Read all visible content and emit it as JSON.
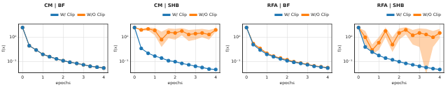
{
  "chart_data": [
    {
      "type": "line",
      "title": "CM | BF",
      "x_label": "epochs",
      "y_label": "f(x)",
      "x": [
        0,
        0.33,
        0.67,
        1,
        1.33,
        1.67,
        2,
        2.33,
        2.67,
        3,
        3.33,
        3.67,
        4
      ],
      "series": [
        {
          "name": "W/ Clip",
          "color": "#1f77b4",
          "marker": "circle",
          "line_style": "solid",
          "values": [
            2.5,
            0.45,
            0.3,
            0.2,
            0.16,
            0.13,
            0.11,
            0.095,
            0.085,
            0.075,
            0.065,
            0.06,
            0.055
          ]
        },
        {
          "name": "W/O Clip",
          "color": "#ff7f0e",
          "marker": "circle",
          "line_style": "solid",
          "values": [
            2.5,
            0.45,
            0.3,
            0.2,
            0.16,
            0.13,
            0.11,
            0.095,
            0.085,
            0.075,
            0.065,
            0.06,
            0.055
          ]
        }
      ],
      "log": "y",
      "grid": true,
      "legend": "upper right",
      "xlim": [
        -0.2,
        4.2
      ],
      "xticks": [
        0,
        1,
        2,
        3,
        4
      ],
      "ylim": [
        0.035,
        3.5
      ],
      "yticks": [
        {
          "value": 0.1,
          "label": "10⁻¹"
        },
        {
          "value": 1,
          "label": "10⁰"
        }
      ]
    },
    {
      "type": "line",
      "title": "CM | SHB",
      "x_label": "epochs",
      "y_label": "f(x)",
      "x": [
        0,
        0.33,
        0.67,
        1,
        1.33,
        1.67,
        2,
        2.33,
        2.67,
        3,
        3.33,
        3.67,
        4
      ],
      "series": [
        {
          "name": "W/ Clip",
          "color": "#1f77b4",
          "marker": "circle",
          "line_style": "solid",
          "values": [
            2.5,
            0.35,
            0.22,
            0.17,
            0.14,
            0.11,
            0.1,
            0.085,
            0.075,
            0.065,
            0.058,
            0.05,
            0.048
          ]
        },
        {
          "name": "W/O Clip",
          "color": "#ff7f0e",
          "marker": "circle",
          "line_style": "solid",
          "values": [
            2.5,
            2.0,
            2.2,
            1.9,
            0.8,
            1.6,
            1.5,
            1.8,
            1.3,
            1.4,
            1.5,
            1.3,
            2.0
          ],
          "lower": [
            2.5,
            1.8,
            1.9,
            1.2,
            0.4,
            0.9,
            0.8,
            1.2,
            0.7,
            0.8,
            1.0,
            0.8,
            1.7
          ],
          "upper": [
            2.5,
            2.2,
            2.5,
            2.4,
            1.7,
            2.3,
            2.2,
            2.4,
            2.0,
            2.1,
            2.2,
            2.0,
            2.3
          ]
        }
      ],
      "log": "y",
      "grid": true,
      "legend": "upper right",
      "xlim": [
        -0.2,
        4.2
      ],
      "xticks": [
        0,
        1,
        2,
        3,
        4
      ],
      "ylim": [
        0.035,
        3.5
      ],
      "yticks": [
        {
          "value": 0.1,
          "label": "10⁻¹"
        },
        {
          "value": 1,
          "label": "10⁰"
        }
      ]
    },
    {
      "type": "line",
      "title": "RFA | BF",
      "x_label": "epochs",
      "y_label": "f(x)",
      "x": [
        0,
        0.33,
        0.67,
        1,
        1.33,
        1.67,
        2,
        2.33,
        2.67,
        3,
        3.33,
        3.67,
        4
      ],
      "series": [
        {
          "name": "W/ Clip",
          "color": "#1f77b4",
          "marker": "circle",
          "line_style": "solid",
          "values": [
            2.5,
            0.5,
            0.3,
            0.2,
            0.16,
            0.13,
            0.11,
            0.095,
            0.085,
            0.075,
            0.065,
            0.06,
            0.055
          ]
        },
        {
          "name": "W/O Clip",
          "color": "#ff7f0e",
          "marker": "circle",
          "line_style": "solid",
          "values": [
            2.5,
            0.55,
            0.35,
            0.22,
            0.17,
            0.14,
            0.12,
            0.1,
            0.088,
            0.078,
            0.068,
            0.062,
            0.057
          ]
        }
      ],
      "log": "y",
      "grid": true,
      "legend": "upper right",
      "xlim": [
        -0.2,
        4.2
      ],
      "xticks": [
        0,
        1,
        2,
        3,
        4
      ],
      "ylim": [
        0.035,
        3.5
      ],
      "yticks": [
        {
          "value": 0.1,
          "label": "10⁻¹"
        },
        {
          "value": 1,
          "label": "10⁰"
        }
      ]
    },
    {
      "type": "line",
      "title": "RFA | SHB",
      "x_label": "epochs",
      "y_label": "f(x)",
      "x": [
        0,
        0.33,
        0.67,
        1,
        1.33,
        1.67,
        2,
        2.33,
        2.67,
        3,
        3.33,
        3.67,
        4
      ],
      "series": [
        {
          "name": "W/ Clip",
          "color": "#1f77b4",
          "marker": "circle",
          "line_style": "solid",
          "values": [
            2.5,
            0.4,
            0.25,
            0.18,
            0.14,
            0.12,
            0.1,
            0.085,
            0.075,
            0.065,
            0.058,
            0.052,
            0.048
          ]
        },
        {
          "name": "W/O Clip",
          "color": "#ff7f0e",
          "marker": "circle",
          "line_style": "solid",
          "values": [
            2.5,
            1.0,
            0.3,
            0.6,
            1.8,
            0.5,
            1.5,
            2.0,
            1.2,
            1.5,
            1.3,
            1.0,
            1.5
          ],
          "lower": [
            2.5,
            0.5,
            0.2,
            0.3,
            1.0,
            0.25,
            0.8,
            1.3,
            0.5,
            0.4,
            0.03,
            0.4,
            0.9
          ],
          "upper": [
            2.5,
            1.8,
            0.5,
            1.0,
            2.5,
            1.0,
            2.3,
            2.6,
            2.0,
            2.3,
            2.2,
            1.8,
            2.2
          ]
        }
      ],
      "log": "y",
      "grid": true,
      "legend": "upper right",
      "xlim": [
        -0.2,
        4.2
      ],
      "xticks": [
        0,
        1,
        2,
        3,
        4
      ],
      "ylim": [
        0.035,
        3.5
      ],
      "yticks": [
        {
          "value": 0.1,
          "label": "10⁻¹"
        },
        {
          "value": 1,
          "label": "10⁰"
        }
      ]
    }
  ]
}
